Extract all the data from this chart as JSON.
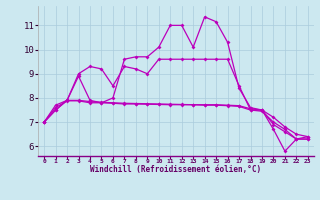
{
  "background_color": "#cce8f0",
  "grid_color": "#aaccdd",
  "line_color": "#bb00bb",
  "marker": "D",
  "marker_size": 2.0,
  "linewidth": 0.9,
  "xlim": [
    -0.5,
    23.5
  ],
  "ylim": [
    5.6,
    11.8
  ],
  "yticks": [
    6,
    7,
    8,
    9,
    10,
    11
  ],
  "xticks": [
    0,
    1,
    2,
    3,
    4,
    5,
    6,
    7,
    8,
    9,
    10,
    11,
    12,
    13,
    14,
    15,
    16,
    17,
    18,
    19,
    20,
    21,
    22,
    23
  ],
  "xlabel": "Windchill (Refroidissement éolien,°C)",
  "series": [
    [
      7.0,
      7.5,
      7.9,
      8.9,
      7.9,
      7.8,
      8.0,
      9.6,
      9.7,
      9.7,
      10.1,
      11.0,
      11.0,
      10.1,
      11.35,
      11.15,
      10.3,
      8.4,
      7.6,
      7.5,
      6.7,
      5.8,
      6.3,
      6.4
    ],
    [
      7.0,
      7.5,
      7.9,
      9.0,
      9.3,
      9.2,
      8.5,
      9.3,
      9.2,
      9.0,
      9.6,
      9.6,
      9.6,
      9.6,
      9.6,
      9.6,
      9.6,
      8.5,
      7.5,
      7.5,
      6.9,
      6.6,
      6.3,
      6.3
    ],
    [
      7.0,
      7.7,
      7.9,
      7.9,
      7.85,
      7.82,
      7.8,
      7.78,
      7.77,
      7.76,
      7.75,
      7.74,
      7.73,
      7.72,
      7.72,
      7.72,
      7.7,
      7.68,
      7.55,
      7.5,
      7.2,
      6.8,
      6.5,
      6.4
    ],
    [
      7.0,
      7.6,
      7.88,
      7.88,
      7.8,
      7.8,
      7.78,
      7.75,
      7.75,
      7.74,
      7.73,
      7.72,
      7.72,
      7.72,
      7.7,
      7.7,
      7.68,
      7.65,
      7.5,
      7.45,
      7.0,
      6.7,
      6.3,
      6.3
    ]
  ]
}
